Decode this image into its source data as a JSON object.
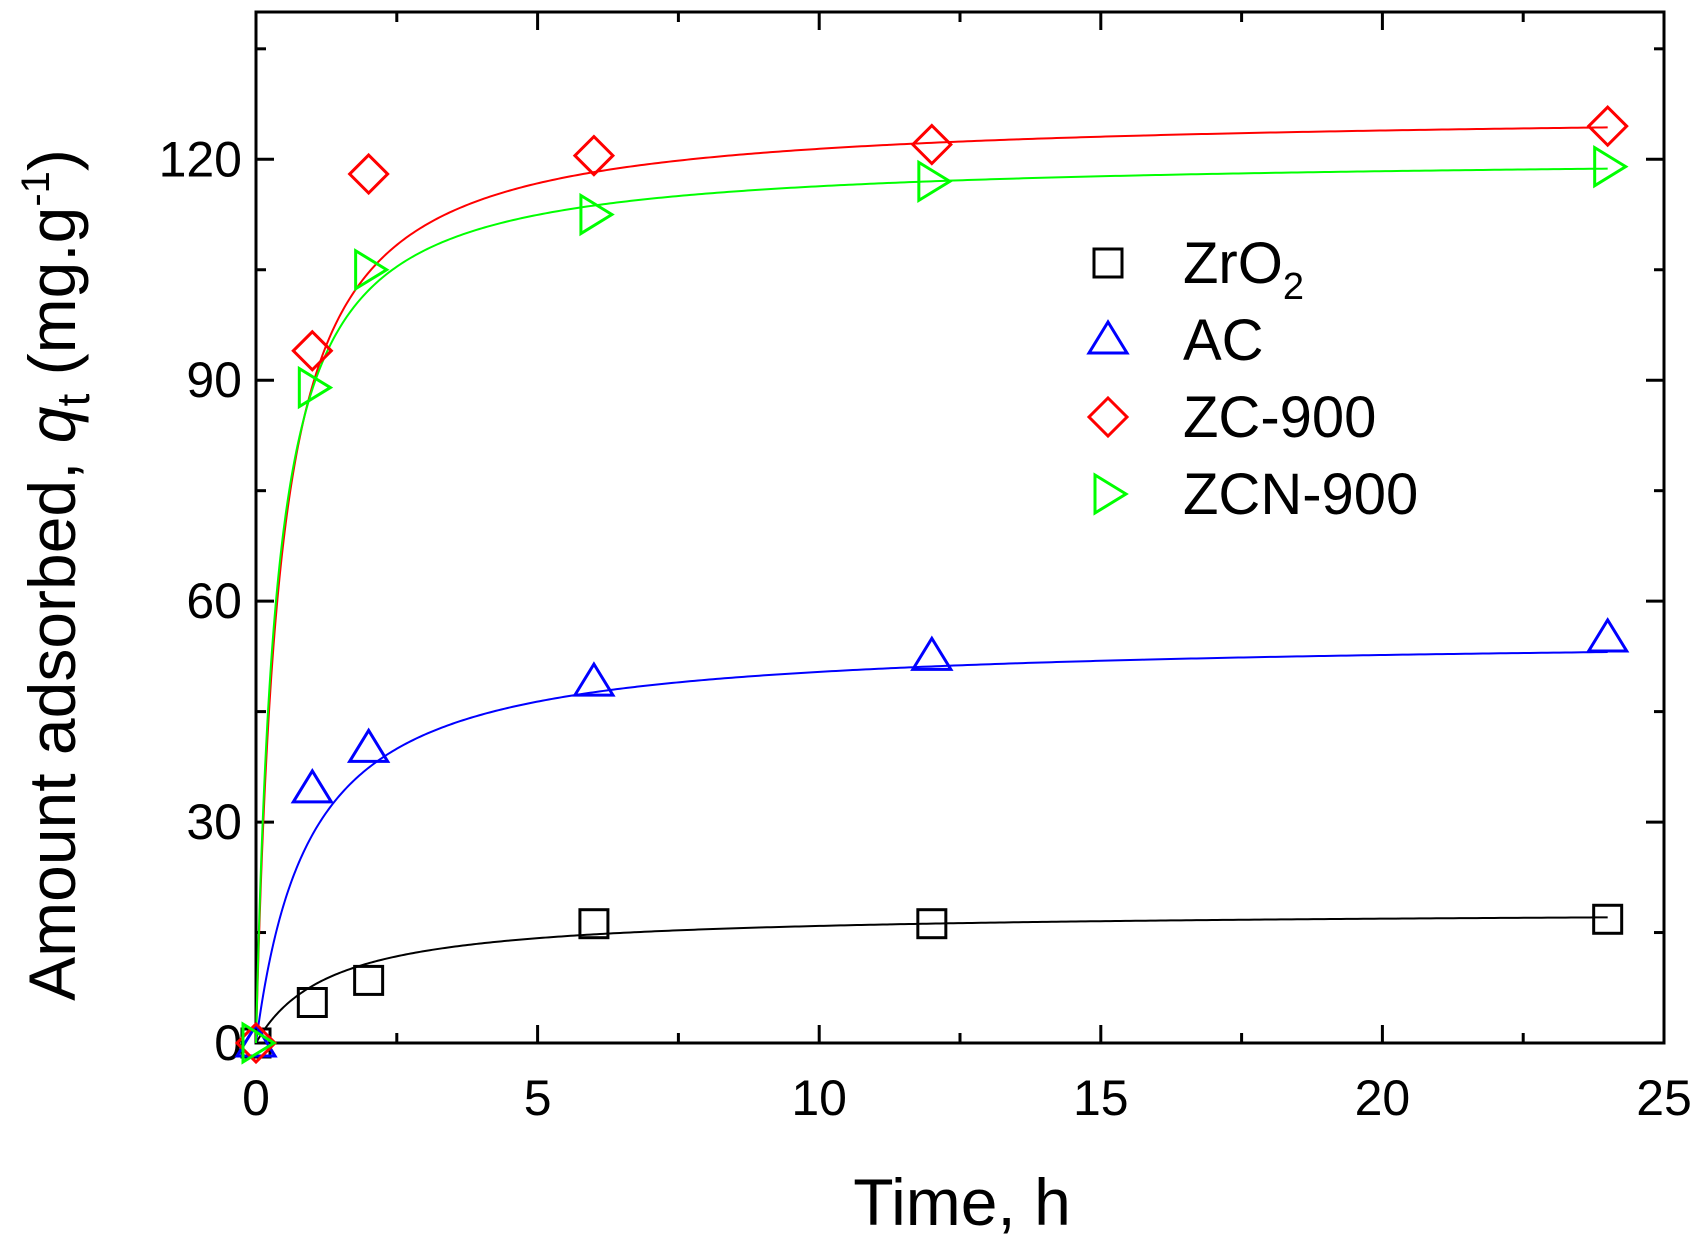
{
  "chart_data": {
    "type": "scatter",
    "xlabel": "Time, h",
    "ylabel": {
      "prefix": "Amount adsorbed, ",
      "symbol": "q",
      "symbol_sub": "t",
      "unit_open": " (mg.g",
      "unit_sup": "-1",
      "unit_close": ")"
    },
    "xlim": [
      0,
      25
    ],
    "ylim": [
      0,
      140
    ],
    "xticks": [
      0,
      5,
      10,
      15,
      20,
      25
    ],
    "yticks": [
      0,
      30,
      60,
      90,
      120
    ],
    "grid": false,
    "legend_position": "upper-right",
    "series": [
      {
        "name": "ZrO",
        "name_sub": "2",
        "marker": "square",
        "color": "#000000",
        "points": [
          [
            0,
            0
          ],
          [
            1,
            5.5
          ],
          [
            2,
            8.5
          ],
          [
            6,
            16.2
          ],
          [
            12,
            16.2
          ],
          [
            24,
            16.8
          ]
        ],
        "fit": {
          "model": "pseudo-second-order",
          "qe": 18.0,
          "k2": 0.042
        }
      },
      {
        "name": "AC",
        "marker": "triangle-up",
        "color": "#0000ff",
        "points": [
          [
            0,
            0
          ],
          [
            1,
            34.5
          ],
          [
            2,
            40
          ],
          [
            6,
            49
          ],
          [
            12,
            52.5
          ],
          [
            24,
            55
          ]
        ],
        "fit": {
          "model": "pseudo-second-order",
          "qe": 55.2,
          "k2": 0.019
        }
      },
      {
        "name": "ZC-900",
        "marker": "diamond",
        "color": "#ff0000",
        "points": [
          [
            0,
            0
          ],
          [
            1,
            94
          ],
          [
            2,
            118
          ],
          [
            6,
            120.5
          ],
          [
            12,
            122
          ],
          [
            24,
            124.5
          ]
        ],
        "fit": {
          "model": "pseudo-second-order",
          "qe": 126.5,
          "k2": 0.0189
        }
      },
      {
        "name": "ZCN-900",
        "marker": "triangle-right",
        "color": "#00ff00",
        "points": [
          [
            0,
            0
          ],
          [
            1,
            89
          ],
          [
            2,
            105
          ],
          [
            6,
            112.5
          ],
          [
            12,
            117
          ],
          [
            24,
            119
          ]
        ],
        "fit": {
          "model": "pseudo-second-order",
          "qe": 120.5,
          "k2": 0.0232
        }
      }
    ]
  }
}
